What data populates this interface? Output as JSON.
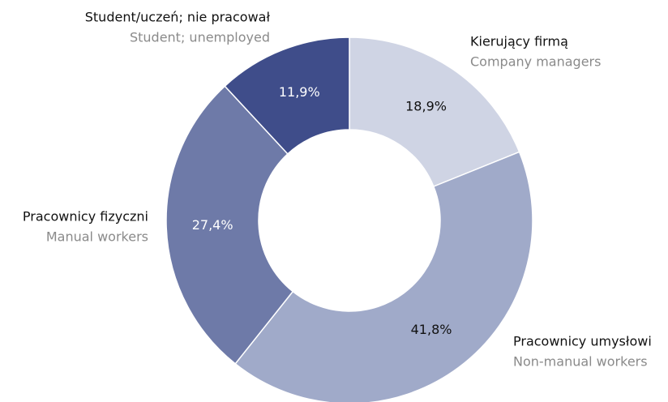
{
  "chart_data": {
    "type": "donut",
    "categories": [
      "Kierujący firmą",
      "Pracownicy umysłowi",
      "Pracownicy fizyczni",
      "Student/uczeń; nie pracował"
    ],
    "category_translations": [
      "Company managers",
      "Non-manual workers",
      "Manual workers",
      "Student; unemployed"
    ],
    "values": [
      18.9,
      41.8,
      27.4,
      11.9
    ],
    "value_labels": [
      "18,9%",
      "41,8%",
      "27,4%",
      "11,9%"
    ],
    "colors": [
      "#cfd4e4",
      "#a0aac9",
      "#6e7aa8",
      "#3f4d8a"
    ],
    "label_colors": [
      "#111111",
      "#111111",
      "#ffffff",
      "#ffffff"
    ]
  }
}
